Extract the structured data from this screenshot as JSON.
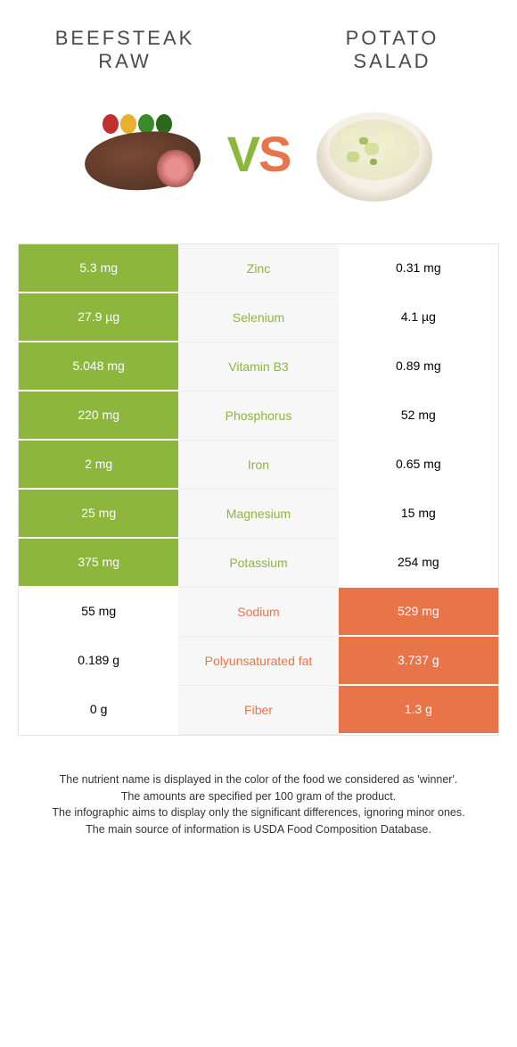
{
  "left_food": {
    "line1": "BEEFSTEAK",
    "line2": "RAW"
  },
  "right_food": {
    "line1": "POTATO",
    "line2": "SALAD"
  },
  "vs": {
    "v": "V",
    "s": "S"
  },
  "colors": {
    "green": "#8cb63c",
    "orange": "#e8754a",
    "bg": "#ffffff",
    "cell_bg": "#f7f7f7"
  },
  "rows": [
    {
      "left": "5.3 mg",
      "label": "Zinc",
      "right": "0.31 mg",
      "winner": "left"
    },
    {
      "left": "27.9 µg",
      "label": "Selenium",
      "right": "4.1 µg",
      "winner": "left"
    },
    {
      "left": "5.048 mg",
      "label": "Vitamin B3",
      "right": "0.89 mg",
      "winner": "left"
    },
    {
      "left": "220 mg",
      "label": "Phosphorus",
      "right": "52 mg",
      "winner": "left"
    },
    {
      "left": "2 mg",
      "label": "Iron",
      "right": "0.65 mg",
      "winner": "left"
    },
    {
      "left": "25 mg",
      "label": "Magnesium",
      "right": "15 mg",
      "winner": "left"
    },
    {
      "left": "375 mg",
      "label": "Potassium",
      "right": "254 mg",
      "winner": "left"
    },
    {
      "left": "55 mg",
      "label": "Sodium",
      "right": "529 mg",
      "winner": "right"
    },
    {
      "left": "0.189 g",
      "label": "Polyunsaturated fat",
      "right": "3.737 g",
      "winner": "right"
    },
    {
      "left": "0 g",
      "label": "Fiber",
      "right": "1.3 g",
      "winner": "right"
    }
  ],
  "footnote": {
    "l1": "The nutrient name is displayed in the color of the food we considered as 'winner'.",
    "l2": "The amounts are specified per 100 gram of the product.",
    "l3": "The infographic aims to display only the significant differences, ignoring minor ones.",
    "l4": "The main source of information is USDA Food Composition Database."
  }
}
